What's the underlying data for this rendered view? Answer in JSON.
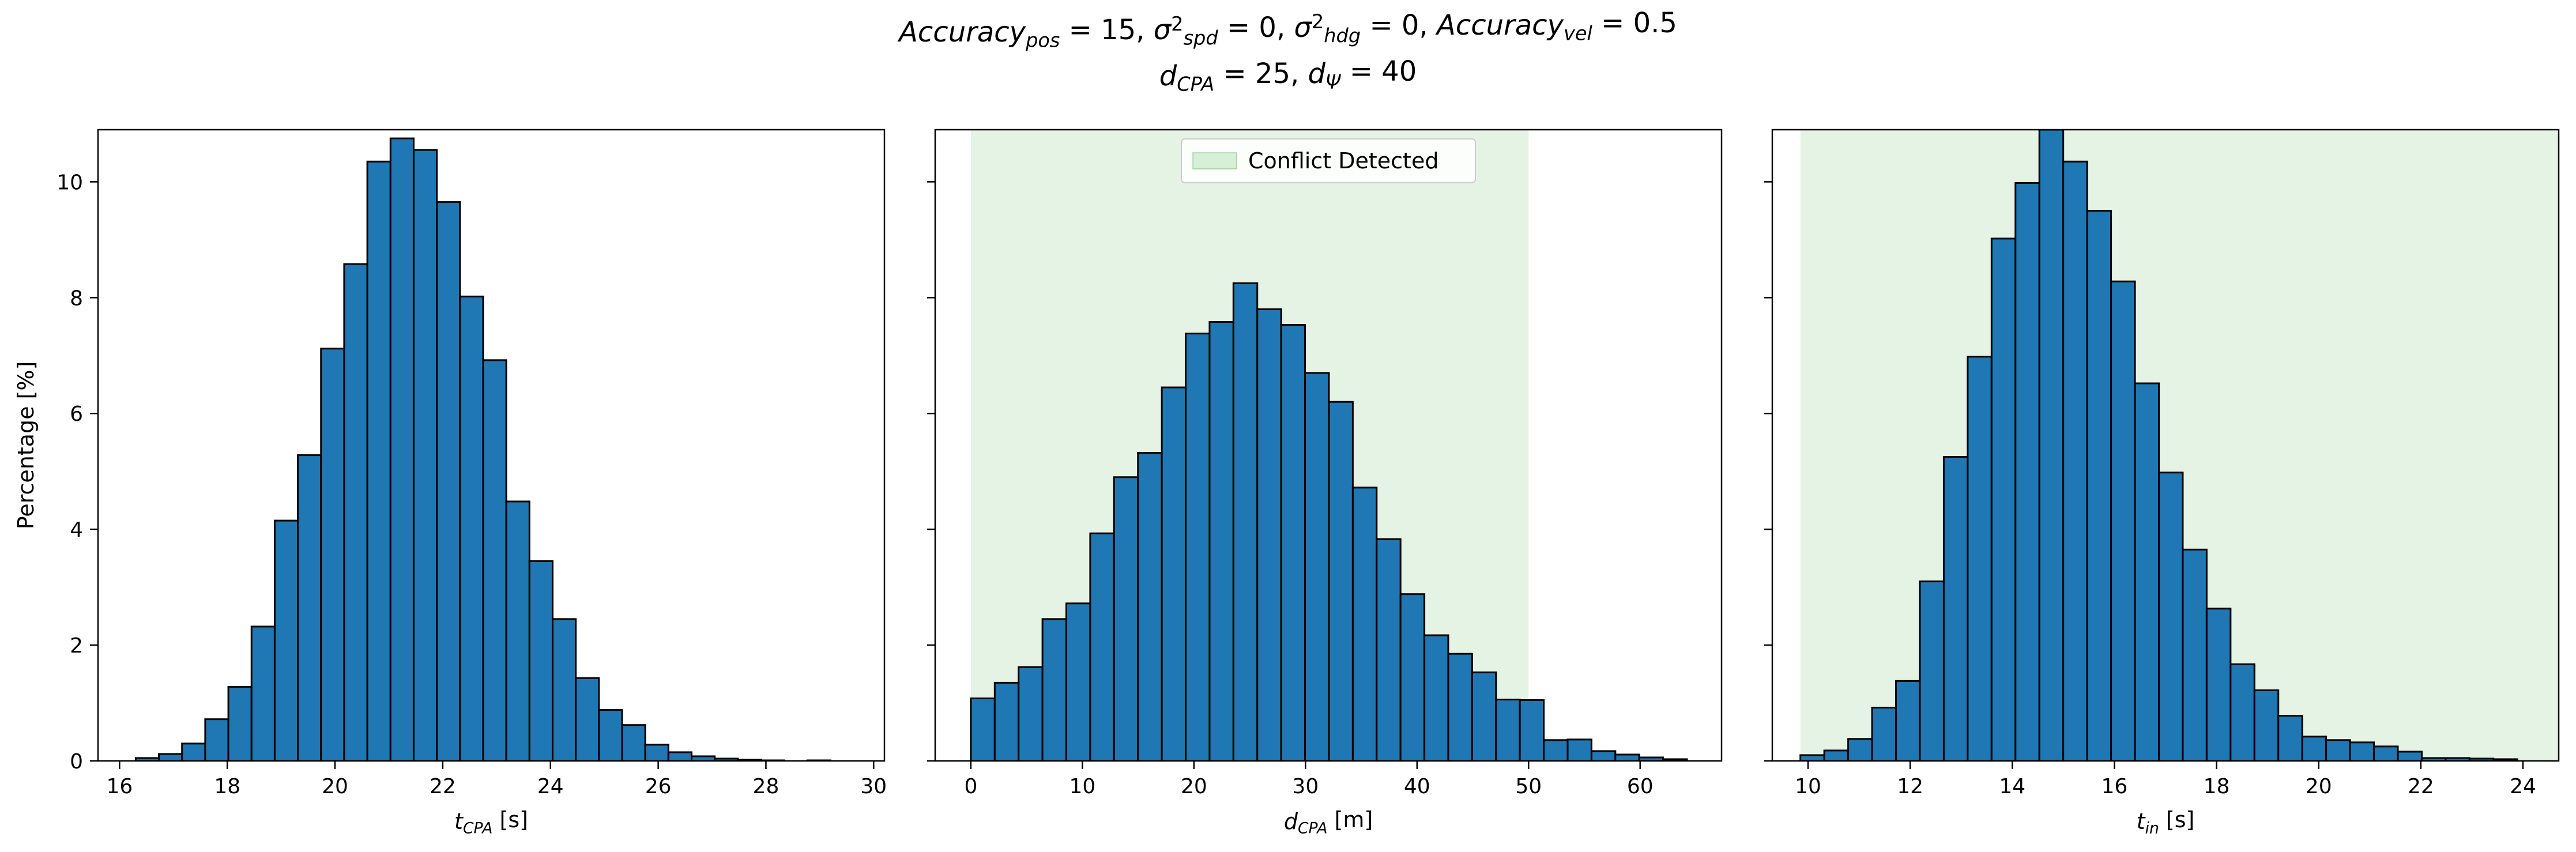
{
  "title": {
    "line1": {
      "parts": [
        {
          "t": "Accuracy",
          "s": "i"
        },
        {
          "t": "pos",
          "s": "sub"
        },
        {
          "t": " = 15, "
        },
        {
          "t": "σ",
          "s": "i"
        },
        {
          "t": "2",
          "s": "sup"
        },
        {
          "t": "spd",
          "s": "sub"
        },
        {
          "t": " = 0, "
        },
        {
          "t": "σ",
          "s": "i"
        },
        {
          "t": "2",
          "s": "sup"
        },
        {
          "t": "hdg",
          "s": "sub"
        },
        {
          "t": " = 0, "
        },
        {
          "t": "Accuracy",
          "s": "i"
        },
        {
          "t": "vel",
          "s": "sub"
        },
        {
          "t": " = 0.5"
        }
      ]
    },
    "line2": {
      "parts": [
        {
          "t": "d",
          "s": "i"
        },
        {
          "t": "CPA",
          "s": "sub"
        },
        {
          "t": " = 25, "
        },
        {
          "t": "d",
          "s": "i"
        },
        {
          "t": "Ψ",
          "s": "sub"
        },
        {
          "t": " = 40"
        }
      ]
    }
  },
  "chart_data": [
    {
      "type": "bar",
      "subtype": "histogram",
      "bar_color": "#1f77b4",
      "edge_color": "#000000",
      "xlabel": {
        "parts": [
          {
            "t": "t",
            "s": "i"
          },
          {
            "t": "CPA",
            "s": "sub"
          },
          {
            "t": " [s]"
          }
        ]
      },
      "ylabel": "Percentage [%]",
      "xlim": [
        15.6,
        30.2
      ],
      "ylim": [
        0,
        10.9
      ],
      "xticks": [
        16,
        18,
        20,
        22,
        24,
        26,
        28,
        30
      ],
      "yticks": [
        0,
        2,
        4,
        6,
        8,
        10
      ],
      "show_ytick_labels": true,
      "bin_start": 16.3,
      "bin_width": 0.43,
      "values": [
        0.05,
        0.12,
        0.3,
        0.72,
        1.28,
        2.32,
        4.15,
        5.28,
        7.12,
        8.58,
        10.35,
        10.75,
        10.55,
        9.65,
        8.02,
        6.92,
        4.48,
        3.45,
        2.45,
        1.43,
        0.88,
        0.62,
        0.28,
        0.15,
        0.08,
        0.04,
        0.02,
        0.01,
        0.0,
        0.01
      ],
      "shaded_region": null
    },
    {
      "type": "bar",
      "subtype": "histogram",
      "bar_color": "#1f77b4",
      "edge_color": "#000000",
      "xlabel": {
        "parts": [
          {
            "t": "d",
            "s": "i"
          },
          {
            "t": "CPA",
            "s": "sub"
          },
          {
            "t": " [m]"
          }
        ]
      },
      "ylabel": "",
      "xlim": [
        -3.2,
        67.3
      ],
      "ylim": [
        0,
        10.9
      ],
      "xticks": [
        0,
        10,
        20,
        30,
        40,
        50,
        60
      ],
      "yticks": [
        0,
        2,
        4,
        6,
        8,
        10
      ],
      "show_ytick_labels": false,
      "bin_start": 0.0,
      "bin_width": 2.14,
      "values": [
        1.08,
        1.35,
        1.62,
        2.45,
        2.72,
        3.93,
        4.9,
        5.32,
        6.45,
        7.38,
        7.58,
        8.25,
        7.8,
        7.53,
        6.7,
        6.2,
        4.72,
        3.83,
        2.88,
        2.17,
        1.85,
        1.53,
        1.06,
        1.05,
        0.36,
        0.37,
        0.17,
        0.11,
        0.06,
        0.03
      ],
      "shaded_region": {
        "x_from": 0,
        "x_to": 50,
        "color": "#2ca02c",
        "opacity": 0.12
      },
      "legend": {
        "label": "Conflict Detected",
        "position": "upper center"
      }
    },
    {
      "type": "bar",
      "subtype": "histogram",
      "bar_color": "#1f77b4",
      "edge_color": "#000000",
      "xlabel": {
        "parts": [
          {
            "t": "t",
            "s": "i"
          },
          {
            "t": "in",
            "s": "sub"
          },
          {
            "t": " [s]"
          }
        ]
      },
      "ylabel": "",
      "xlim": [
        9.3,
        24.7
      ],
      "ylim": [
        0,
        10.9
      ],
      "xticks": [
        10,
        12,
        14,
        16,
        18,
        20,
        22,
        24
      ],
      "yticks": [
        0,
        2,
        4,
        6,
        8,
        10
      ],
      "show_ytick_labels": false,
      "bin_start": 9.85,
      "bin_width": 0.468,
      "values": [
        0.1,
        0.18,
        0.38,
        0.92,
        1.38,
        3.1,
        5.25,
        6.98,
        9.02,
        9.98,
        10.9,
        10.35,
        9.5,
        8.28,
        6.52,
        4.98,
        3.65,
        2.63,
        1.67,
        1.22,
        0.78,
        0.42,
        0.36,
        0.32,
        0.25,
        0.16,
        0.05,
        0.05,
        0.04,
        0.03
      ],
      "shaded_region": {
        "x_from": 9.85,
        "x_to": 24.7,
        "color": "#2ca02c",
        "opacity": 0.12
      }
    }
  ]
}
